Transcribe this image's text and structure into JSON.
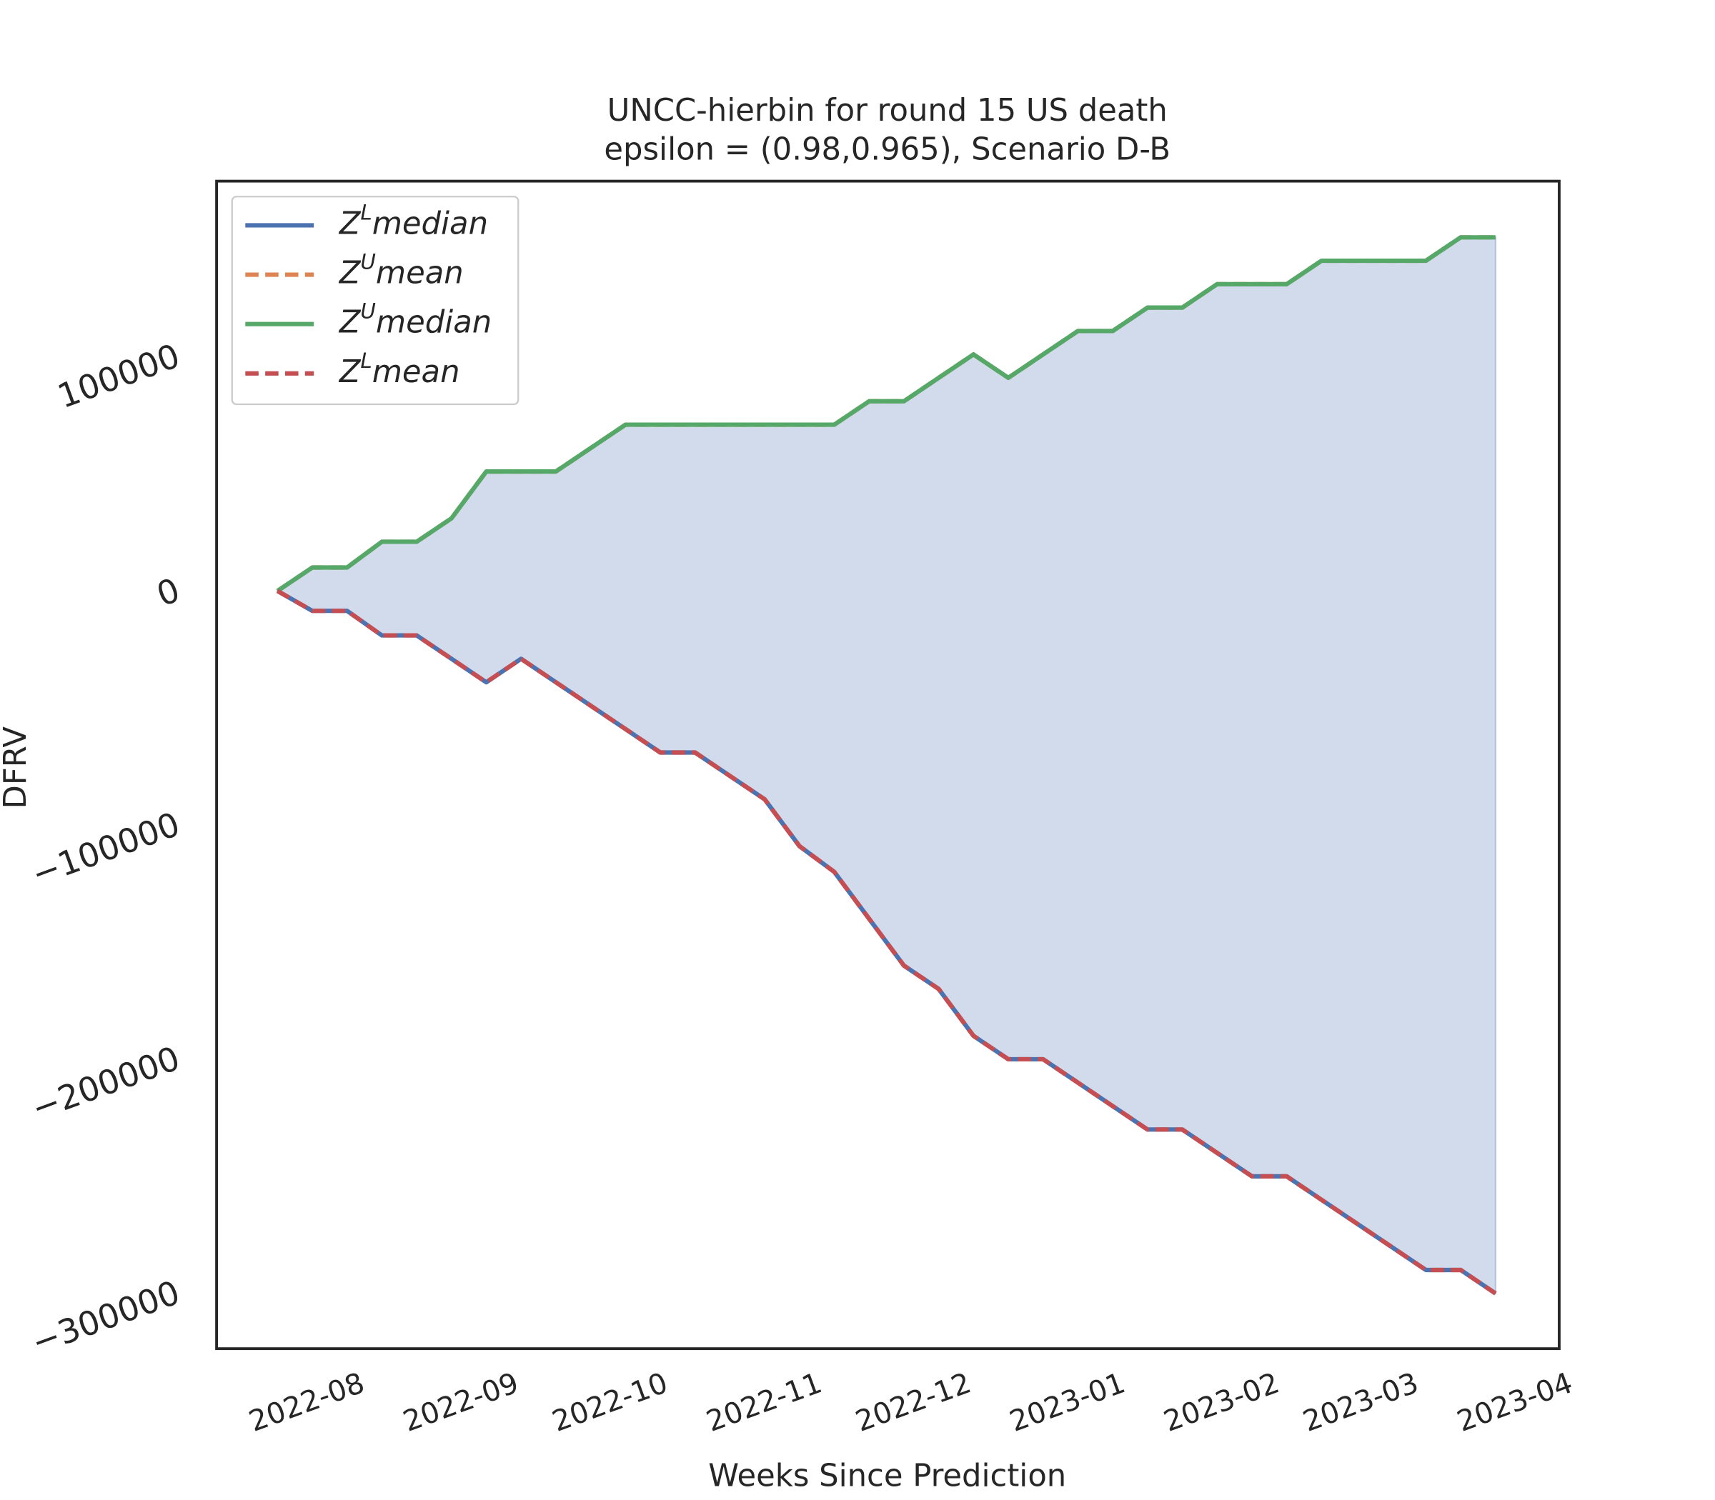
{
  "chart_data": {
    "type": "line",
    "title": "UNCC-hierbin for round 15 US  death",
    "subtitle": "epsilon = (0.98,0.965), Scenario D-B",
    "xlabel": "Weeks Since Prediction",
    "ylabel": "DFRV",
    "x": [
      0,
      1,
      2,
      3,
      4,
      5,
      6,
      7,
      8,
      9,
      10,
      11,
      12,
      13,
      14,
      15,
      16,
      17,
      18,
      19,
      20,
      21,
      22,
      23,
      24,
      25,
      26,
      27,
      28,
      29,
      30,
      31,
      32,
      33,
      34,
      35
    ],
    "xlim": [
      -1.75,
      36.83
    ],
    "xticks": [
      {
        "value": 0.857,
        "label": "2022-08"
      },
      {
        "value": 5.286,
        "label": "2022-09"
      },
      {
        "value": 9.571,
        "label": "2022-10"
      },
      {
        "value": 14,
        "label": "2022-11"
      },
      {
        "value": 18.286,
        "label": "2022-12"
      },
      {
        "value": 22.714,
        "label": "2023-01"
      },
      {
        "value": 27.143,
        "label": "2023-02"
      },
      {
        "value": 31.143,
        "label": "2023-03"
      },
      {
        "value": 35.571,
        "label": "2023-04"
      }
    ],
    "ylim": [
      -323600,
      175000
    ],
    "yticks": [
      {
        "value": -300000,
        "label": "−300000"
      },
      {
        "value": -200000,
        "label": "−200000"
      },
      {
        "value": -100000,
        "label": "−100000"
      },
      0,
      100000
    ],
    "grid": false,
    "legend": "upper left",
    "band_color": "#d2dbeb",
    "series": [
      {
        "name": "ZLmedian",
        "color": "#4c72b0",
        "dashed": false,
        "values": [
          0,
          -8500,
          -8500,
          -19000,
          -19000,
          -29000,
          -39000,
          -29000,
          -39000,
          -49000,
          -59000,
          -69000,
          -69000,
          -79000,
          -89000,
          -109000,
          -120000,
          -140000,
          -160000,
          -170000,
          -190000,
          -200000,
          -200000,
          -210000,
          -220000,
          -230000,
          -230000,
          -240000,
          -250000,
          -250000,
          -260000,
          -270000,
          -280000,
          -290000,
          -290000,
          -300000
        ]
      },
      {
        "name": "ZUmean",
        "color": "#dd8452",
        "dashed": true,
        "values": [
          0,
          10000,
          10000,
          21000,
          21000,
          31000,
          51000,
          51000,
          51000,
          61000,
          71000,
          71000,
          71000,
          71000,
          71000,
          71000,
          71000,
          81000,
          81000,
          91000,
          101000,
          91000,
          101000,
          111000,
          111000,
          121000,
          121000,
          131000,
          131000,
          131000,
          141000,
          141000,
          141000,
          141000,
          151000,
          151000
        ]
      },
      {
        "name": "ZUmedian",
        "color": "#55a868",
        "dashed": false,
        "values": [
          0,
          10000,
          10000,
          21000,
          21000,
          31000,
          51000,
          51000,
          51000,
          61000,
          71000,
          71000,
          71000,
          71000,
          71000,
          71000,
          71000,
          81000,
          81000,
          91000,
          101000,
          91000,
          101000,
          111000,
          111000,
          121000,
          121000,
          131000,
          131000,
          131000,
          141000,
          141000,
          141000,
          141000,
          151000,
          151000
        ]
      },
      {
        "name": "ZLmean",
        "color": "#c44e52",
        "dashed": true,
        "values": [
          0,
          -8500,
          -8500,
          -19000,
          -19000,
          -29000,
          -39000,
          -29000,
          -39000,
          -49000,
          -59000,
          -69000,
          -69000,
          -79000,
          -89000,
          -109000,
          -120000,
          -140000,
          -160000,
          -170000,
          -190000,
          -200000,
          -200000,
          -210000,
          -220000,
          -230000,
          -230000,
          -240000,
          -250000,
          -250000,
          -260000,
          -270000,
          -280000,
          -290000,
          -290000,
          -300000
        ]
      }
    ]
  }
}
